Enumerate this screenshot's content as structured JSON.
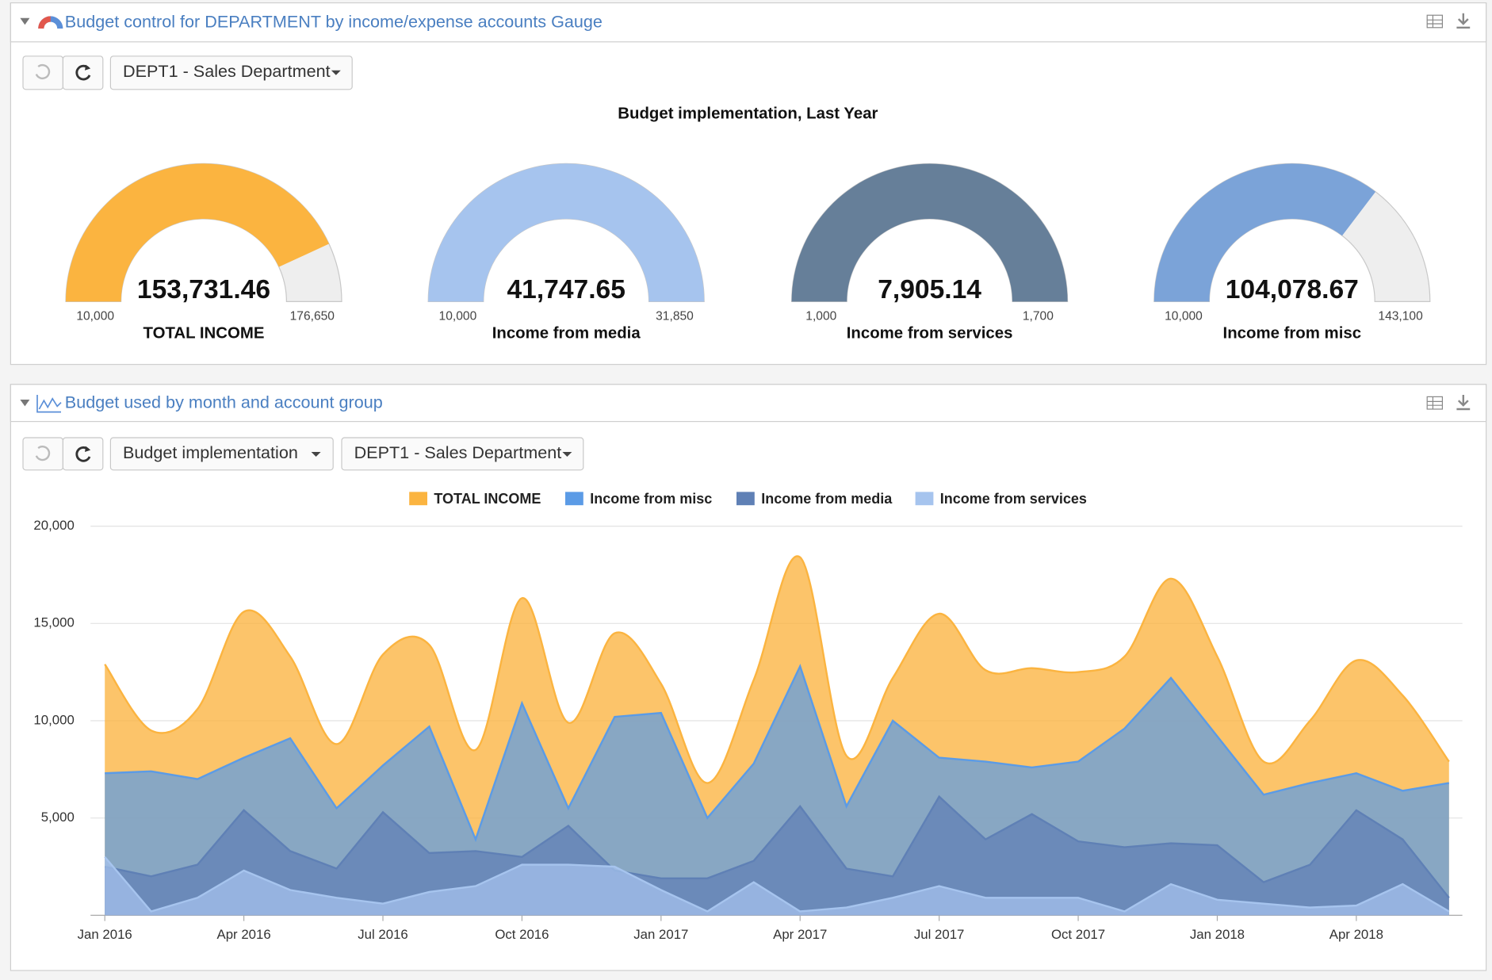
{
  "panels": [
    {
      "title": "Budget control for DEPARTMENT by income/expense accounts Gauge",
      "dropdowns": [
        "DEPT1 - Sales Department"
      ],
      "chart_data": {
        "type": "gauge",
        "title": "Budget implementation, Last Year",
        "gauges": [
          {
            "name": "TOTAL INCOME",
            "value": 153731.46,
            "value_label": "153,731.46",
            "min": {
              "value": 10000,
              "label": "10,000"
            },
            "max": {
              "value": 176650,
              "label": "176,650"
            },
            "color": "#fbb440"
          },
          {
            "name": "Income from media",
            "value": 41747.65,
            "value_label": "41,747.65",
            "min": {
              "value": 10000,
              "label": "10,000"
            },
            "max": {
              "value": 31850,
              "label": "31,850"
            },
            "color": "#a6c4ee"
          },
          {
            "name": "Income from services",
            "value": 7905.14,
            "value_label": "7,905.14",
            "min": {
              "value": 1000,
              "label": "1,000"
            },
            "max": {
              "value": 1700,
              "label": "1,700"
            },
            "color": "#667f99"
          },
          {
            "name": "Income from misc",
            "value": 104078.67,
            "value_label": "104,078.67",
            "min": {
              "value": 10000,
              "label": "10,000"
            },
            "max": {
              "value": 143100,
              "label": "143,100"
            },
            "color": "#7ba3d8"
          }
        ]
      }
    },
    {
      "title": "Budget used by month and account group",
      "dropdowns": [
        "Budget implementation",
        "DEPT1 - Sales Department"
      ],
      "chart_data": {
        "type": "area",
        "categories": [
          "Jan 2016",
          null,
          null,
          "Apr 2016",
          null,
          null,
          "Jul 2016",
          null,
          null,
          "Oct 2016",
          null,
          null,
          "Jan 2017",
          null,
          null,
          "Apr 2017",
          null,
          null,
          "Jul 2017",
          null,
          null,
          "Oct 2017",
          null,
          null,
          "Jan 2018",
          null,
          null,
          "Apr 2018",
          null,
          null
        ],
        "ylim": [
          0,
          20000
        ],
        "yticks": [
          {
            "value": 5000,
            "label": "5,000"
          },
          {
            "value": 10000,
            "label": "10,000"
          },
          {
            "value": 15000,
            "label": "15,000"
          },
          {
            "value": 20000,
            "label": "20,000"
          }
        ],
        "grid": true,
        "legend": "top",
        "series": [
          {
            "name": "TOTAL INCOME",
            "color": "#fbb440",
            "smooth": true,
            "values": [
              12900,
              9500,
              10600,
              15600,
              13300,
              8800,
              13400,
              13900,
              8500,
              16300,
              9900,
              14500,
              11900,
              6800,
              12100,
              18400,
              8200,
              12200,
              15500,
              12600,
              12700,
              12500,
              13300,
              17300,
              13300,
              7900,
              10000,
              13100,
              11300,
              7900
            ]
          },
          {
            "name": "Income from misc",
            "color": "#5b9be6",
            "values": [
              7300,
              7400,
              7000,
              8100,
              9100,
              5500,
              7700,
              9700,
              3900,
              10900,
              5500,
              10200,
              10400,
              5000,
              7800,
              12800,
              5600,
              10000,
              8100,
              7900,
              7600,
              7900,
              9600,
              12200,
              9200,
              6200,
              6800,
              7300,
              6400,
              6800
            ]
          },
          {
            "name": "Income from media",
            "color": "#5f80b5",
            "values": [
              2500,
              2000,
              2600,
              5400,
              3300,
              2400,
              5300,
              3200,
              3300,
              3000,
              4600,
              2300,
              1900,
              1900,
              2800,
              5600,
              2400,
              2000,
              6100,
              3900,
              5200,
              3800,
              3500,
              3700,
              3600,
              1700,
              2600,
              5400,
              3900,
              900
            ]
          },
          {
            "name": "Income from services",
            "color": "#a6c4ee",
            "values": [
              3000,
              200,
              900,
              2300,
              1300,
              900,
              600,
              1200,
              1500,
              2600,
              2600,
              2500,
              1300,
              200,
              1700,
              200,
              400,
              900,
              1500,
              900,
              900,
              900,
              200,
              1600,
              800,
              600,
              400,
              500,
              1600,
              200
            ]
          }
        ]
      }
    }
  ]
}
